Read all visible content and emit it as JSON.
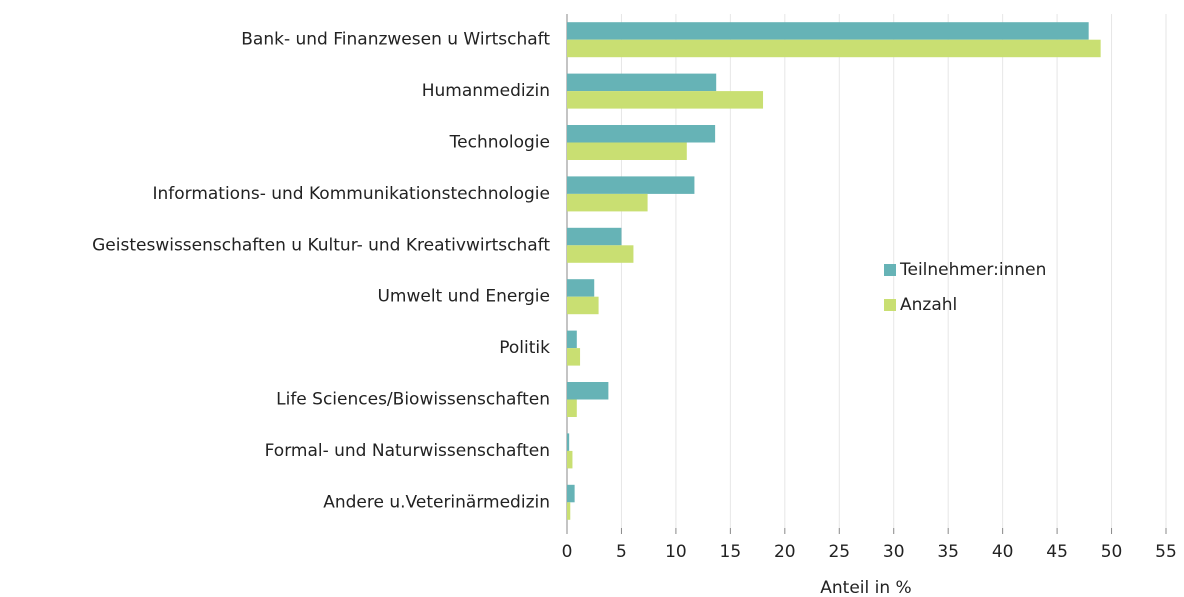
{
  "chart_data": {
    "type": "bar",
    "orientation": "horizontal",
    "x_label": "Anteil in %",
    "categories": [
      "Bank- und Finanzwesen u Wirtschaft",
      "Humanmedizin",
      "Technologie",
      "Informations- und Kommunikationstechnologie",
      "Geisteswissenschaften u Kultur- und Kreativwirtschaft",
      "Umwelt und Energie",
      "Politik",
      "Life Sciences/Biowissenschaften",
      "Formal- und Naturwissenschaften",
      "Andere u.Veterinärmedizin"
    ],
    "series": [
      {
        "name": "Teilnehmer:innen",
        "color": "#66b3b6",
        "values": [
          47.9,
          13.7,
          13.6,
          11.7,
          5.0,
          2.5,
          0.9,
          3.8,
          0.2,
          0.7
        ]
      },
      {
        "name": "Anzahl",
        "color": "#c9df72",
        "values": [
          49.0,
          18.0,
          11.0,
          7.4,
          6.1,
          2.9,
          1.2,
          0.9,
          0.5,
          0.3
        ]
      }
    ],
    "xlim": [
      0,
      55
    ],
    "xticks": [
      0,
      5,
      10,
      15,
      20,
      25,
      30,
      35,
      40,
      45,
      50,
      55
    ],
    "grid": true,
    "legend": "right"
  }
}
